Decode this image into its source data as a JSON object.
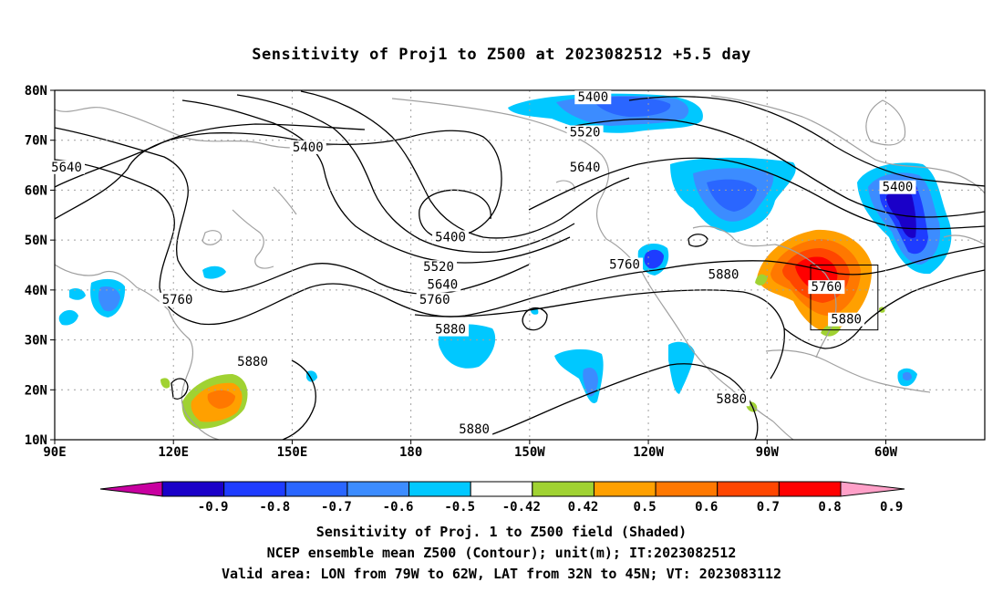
{
  "title": "Sensitivity of Proj1 to Z500 at 2023082512 +5.5 day",
  "lat_labels": [
    "80N",
    "70N",
    "60N",
    "50N",
    "40N",
    "30N",
    "20N",
    "10N"
  ],
  "lon_labels": [
    "90E",
    "120E",
    "150E",
    "180",
    "150W",
    "120W",
    "90W",
    "60W"
  ],
  "contour_labels": [
    {
      "text": "5400",
      "lon": 190,
      "lat": 50.5
    },
    {
      "text": "5400",
      "lon": 154,
      "lat": 68.5
    },
    {
      "text": "5400",
      "lon": 226,
      "lat": 78.5
    },
    {
      "text": "5400",
      "lon": 303,
      "lat": 60.5
    },
    {
      "text": "5520",
      "lon": 224,
      "lat": 71.5
    },
    {
      "text": "5520",
      "lon": 187,
      "lat": 44.5
    },
    {
      "text": "5640",
      "lon": 224,
      "lat": 64.5
    },
    {
      "text": "5640",
      "lon": 188,
      "lat": 41.0
    },
    {
      "text": "5640",
      "lon": 93,
      "lat": 64.5
    },
    {
      "text": "5760",
      "lon": 186,
      "lat": 38.0
    },
    {
      "text": "5760",
      "lon": 121,
      "lat": 38.0
    },
    {
      "text": "5760",
      "lon": 234,
      "lat": 45.0
    },
    {
      "text": "5760",
      "lon": 285,
      "lat": 40.5
    },
    {
      "text": "5880",
      "lon": 190,
      "lat": 32.0
    },
    {
      "text": "5880",
      "lon": 140,
      "lat": 25.5
    },
    {
      "text": "5880",
      "lon": 259,
      "lat": 43.0
    },
    {
      "text": "5880",
      "lon": 290,
      "lat": 34.0
    },
    {
      "text": "5880",
      "lon": 261,
      "lat": 18.0
    },
    {
      "text": "5880",
      "lon": 196,
      "lat": 12.0
    }
  ],
  "valid_box": {
    "lon_min": 281,
    "lon_max": 298,
    "lat_min": 32,
    "lat_max": 45
  },
  "colorbar": {
    "labels": [
      "-0.9",
      "-0.8",
      "-0.7",
      "-0.6",
      "-0.5",
      "-0.42",
      "0.42",
      "0.5",
      "0.6",
      "0.7",
      "0.8",
      "0.9"
    ],
    "colors": [
      "#1a00c8",
      "#1e3cff",
      "#2a66ff",
      "#3c8cff",
      "#00c8ff",
      "#ffffff",
      "#a0d232",
      "#ffa000",
      "#ff7800",
      "#ff4600",
      "#ff0000"
    ],
    "low_end": "#c800a0",
    "high_end": "#ffa0c8"
  },
  "caption": {
    "line1": "Sensitivity of Proj. 1 to Z500 field (Shaded)",
    "line2": "NCEP ensemble mean Z500 (Contour); unit(m); IT:2023082512",
    "line3": "Valid area: LON from 79W to 62W, LAT from 32N to 45N; VT: 2023083112"
  },
  "colors": {
    "coast": "#a0a0a0",
    "grid": "#a0a0a0",
    "contour": "#000000"
  }
}
